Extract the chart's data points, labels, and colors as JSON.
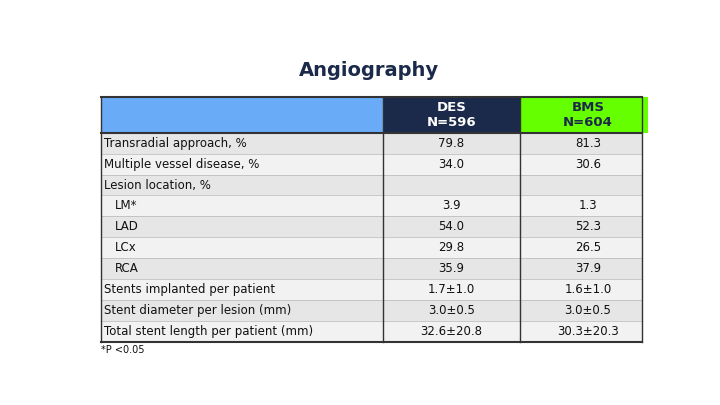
{
  "title": "Angiography",
  "header_des": "DES",
  "header_bms": "BMS",
  "subheader_des": "N=596",
  "subheader_bms": "N=604",
  "rows": [
    {
      "label": "Transradial approach, %",
      "des": "79.8",
      "bms": "81.3",
      "indent": false
    },
    {
      "label": "Multiple vessel disease, %",
      "des": "34.0",
      "bms": "30.6",
      "indent": false
    },
    {
      "label": "Lesion location, %",
      "des": "",
      "bms": "",
      "indent": false
    },
    {
      "label": "LM*",
      "des": "3.9",
      "bms": "1.3",
      "indent": true
    },
    {
      "label": "LAD",
      "des": "54.0",
      "bms": "52.3",
      "indent": true
    },
    {
      "label": "LCx",
      "des": "29.8",
      "bms": "26.5",
      "indent": true
    },
    {
      "label": "RCA",
      "des": "35.9",
      "bms": "37.9",
      "indent": true
    },
    {
      "label": "Stents implanted per patient",
      "des": "1.7±1.0",
      "bms": "1.6±1.0",
      "indent": false
    },
    {
      "label": "Stent diameter per lesion (mm)",
      "des": "3.0±0.5",
      "bms": "3.0±0.5",
      "indent": false
    },
    {
      "label": "Total stent length per patient (mm)",
      "des": "32.6±20.8",
      "bms": "30.3±20.3",
      "indent": false
    }
  ],
  "footnote": "*P <0.05",
  "col_bg_left": "#6aabf7",
  "col_bg_des": "#1b2a4a",
  "col_bg_bms": "#66ff00",
  "header_text_des": "#ffffff",
  "header_text_bms": "#1b2a4a",
  "row_bg_odd": "#e6e6e6",
  "row_bg_even": "#f2f2f2",
  "title_color": "#1b2a4a",
  "body_color": "#111111",
  "title_fontsize": 14,
  "header_fontsize": 9.5,
  "body_fontsize": 8.5,
  "footnote_fontsize": 7
}
